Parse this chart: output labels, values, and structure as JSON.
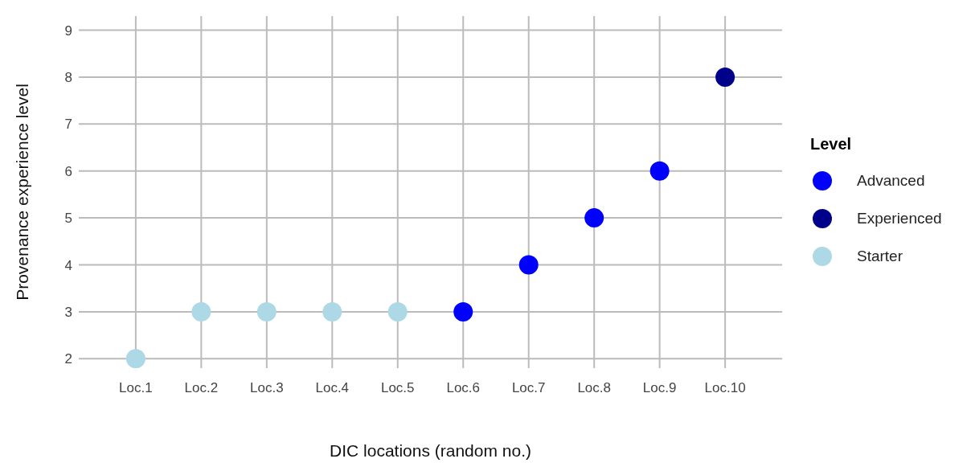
{
  "chart_data": {
    "type": "scatter",
    "xlabel": "DIC locations (random no.)",
    "ylabel": "Provenance experience level",
    "legend_title": "Level",
    "categories": [
      "Loc.1",
      "Loc.2",
      "Loc.3",
      "Loc.4",
      "Loc.5",
      "Loc.6",
      "Loc.7",
      "Loc.8",
      "Loc.9",
      "Loc.10"
    ],
    "series": [
      {
        "name": "Advanced",
        "color": "#0000ff",
        "values": [
          null,
          null,
          null,
          null,
          null,
          3,
          4,
          5,
          6,
          null
        ]
      },
      {
        "name": "Experienced",
        "color": "#00008b",
        "values": [
          null,
          null,
          null,
          null,
          null,
          null,
          null,
          null,
          null,
          8
        ]
      },
      {
        "name": "Starter",
        "color": "#add8e6",
        "values": [
          2,
          3,
          3,
          3,
          3,
          null,
          null,
          null,
          null,
          null
        ]
      }
    ],
    "ylim": [
      1.8,
      9.3
    ],
    "yticks": [
      2,
      3,
      4,
      5,
      6,
      7,
      8,
      9
    ],
    "grid": true,
    "legend": "right",
    "marker": "circle"
  }
}
